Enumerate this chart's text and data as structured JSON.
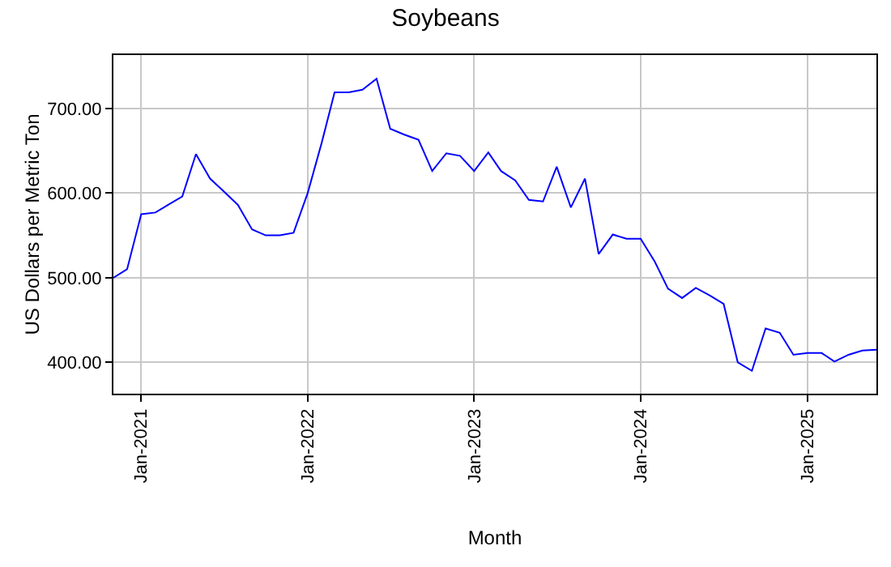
{
  "chart_data": {
    "type": "line",
    "title": "Soybeans",
    "xlabel": "Month",
    "ylabel": "US Dollars per Metric Ton",
    "x": [
      "2020-11",
      "2020-12",
      "2021-01",
      "2021-02",
      "2021-03",
      "2021-04",
      "2021-05",
      "2021-06",
      "2021-07",
      "2021-08",
      "2021-09",
      "2021-10",
      "2021-11",
      "2021-12",
      "2022-01",
      "2022-02",
      "2022-03",
      "2022-04",
      "2022-05",
      "2022-06",
      "2022-07",
      "2022-08",
      "2022-09",
      "2022-10",
      "2022-11",
      "2022-12",
      "2023-01",
      "2023-02",
      "2023-03",
      "2023-04",
      "2023-05",
      "2023-06",
      "2023-07",
      "2023-08",
      "2023-09",
      "2023-10",
      "2023-11",
      "2023-12",
      "2024-01",
      "2024-02",
      "2024-03",
      "2024-04",
      "2024-05",
      "2024-06",
      "2024-07",
      "2024-08",
      "2024-09",
      "2024-10",
      "2024-11",
      "2024-12",
      "2025-01",
      "2025-02",
      "2025-03",
      "2025-04",
      "2025-05",
      "2025-06"
    ],
    "series": [
      {
        "color": "#0000ff",
        "values": [
          500,
          510,
          575,
          577,
          586,
          596,
          646,
          617,
          602,
          586,
          557,
          550,
          550,
          553,
          600,
          660,
          719,
          719,
          722,
          735,
          676,
          669,
          663,
          626,
          647,
          644,
          626,
          648,
          626,
          615,
          592,
          590,
          631,
          583,
          617,
          528,
          551,
          546,
          546,
          519,
          487,
          476,
          488,
          479,
          469,
          400,
          390,
          440,
          435,
          409,
          411,
          411,
          401,
          409,
          414,
          415
        ]
      }
    ],
    "xlim": [
      "2020-11",
      "2025-06"
    ],
    "xticks": [
      {
        "value": "2021-01",
        "label": "Jan-2021"
      },
      {
        "value": "2022-01",
        "label": "Jan-2022"
      },
      {
        "value": "2023-01",
        "label": "Jan-2023"
      },
      {
        "value": "2024-01",
        "label": "Jan-2024"
      },
      {
        "value": "2025-01",
        "label": "Jan-2025"
      }
    ],
    "ylim": [
      363,
      763
    ],
    "yticks": [
      {
        "value": 400,
        "label": "400.00"
      },
      {
        "value": 500,
        "label": "500.00"
      },
      {
        "value": 600,
        "label": "600.00"
      },
      {
        "value": 700,
        "label": "700.00"
      }
    ],
    "grid": true,
    "legend": false,
    "marker": "none",
    "line_style": "solid"
  }
}
